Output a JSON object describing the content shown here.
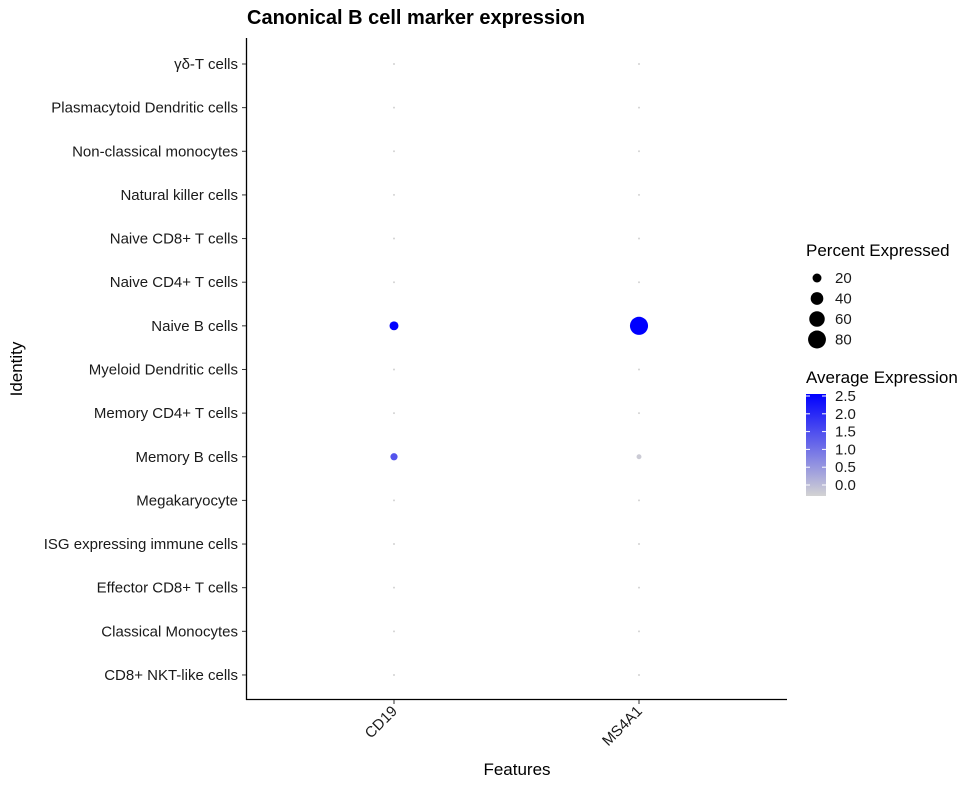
{
  "chart_data": {
    "type": "dotplot",
    "title": "Canonical B cell marker expression",
    "xlabel": "Features",
    "ylabel": "Identity",
    "features": [
      "CD19",
      "MS4A1"
    ],
    "identities": [
      "γδ-T cells",
      "Plasmacytoid Dendritic cells",
      "Non-classical monocytes",
      "Natural killer  cells",
      "Naive CD8+ T cells",
      "Naive CD4+ T cells",
      "Naive B cells",
      "Myeloid Dendritic cells",
      "Memory CD4+ T cells",
      "Memory B cells",
      "Megakaryocyte",
      "ISG expressing immune cells",
      "Effector CD8+ T cells",
      "Classical Monocytes",
      "CD8+ NKT-like cells"
    ],
    "percent_expressed": [
      [
        1,
        1
      ],
      [
        1,
        1
      ],
      [
        1,
        1
      ],
      [
        1,
        1
      ],
      [
        1,
        1
      ],
      [
        1,
        1
      ],
      [
        20,
        82
      ],
      [
        1,
        1
      ],
      [
        1,
        1
      ],
      [
        13,
        6
      ],
      [
        1,
        1
      ],
      [
        1,
        1
      ],
      [
        1,
        1
      ],
      [
        1,
        1
      ],
      [
        1,
        1
      ]
    ],
    "average_expression": [
      [
        0,
        0
      ],
      [
        0,
        0
      ],
      [
        0,
        0
      ],
      [
        0,
        0
      ],
      [
        0,
        0
      ],
      [
        0,
        0
      ],
      [
        2.5,
        2.5
      ],
      [
        0,
        0
      ],
      [
        0,
        0
      ],
      [
        1.5,
        0.1
      ],
      [
        0,
        0
      ],
      [
        0,
        0
      ],
      [
        0,
        0
      ],
      [
        0,
        0
      ],
      [
        0,
        0
      ]
    ],
    "size_legend": {
      "title": "Percent Expressed",
      "values": [
        20,
        40,
        60,
        80
      ],
      "labels": [
        "20",
        "40",
        "60",
        "80"
      ]
    },
    "color_legend": {
      "title": "Average Expression",
      "min": 0.0,
      "max": 2.5,
      "ticks": [
        2.5,
        2.0,
        1.5,
        1.0,
        0.5,
        0.0
      ],
      "tick_labels": [
        "2.5",
        "2.0",
        "1.5",
        "1.0",
        "0.5",
        "0.0"
      ],
      "low_color": "#d3d3d3",
      "high_color": "#0000ff"
    }
  }
}
